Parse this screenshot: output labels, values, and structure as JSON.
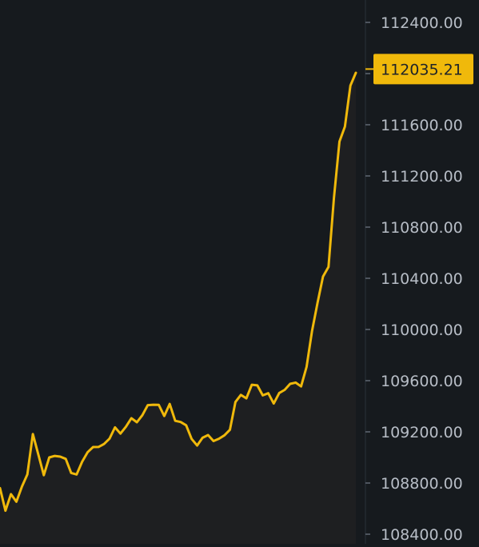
{
  "chart_data": {
    "type": "area",
    "title": "",
    "xlabel": "",
    "ylabel": "",
    "grid": false,
    "ylim": [
      108325,
      112575
    ],
    "y_ticks": [
      112400,
      112000,
      111600,
      111200,
      110800,
      110400,
      110000,
      109600,
      109200,
      108800,
      108400
    ],
    "y_tick_labels": [
      "112400.00",
      "112000.00",
      "111600.00",
      "111200.00",
      "110800.00",
      "110400.00",
      "110000.00",
      "109600.00",
      "109200.00",
      "108800.00",
      "108400.00"
    ],
    "current_price": 112035.21,
    "current_price_label": "112035.21",
    "series": [
      {
        "values": [
          108760,
          108584,
          108713,
          108654,
          108772,
          108867,
          109183,
          109023,
          108861,
          109000,
          109012,
          109006,
          108989,
          108879,
          108867,
          108966,
          109040,
          109081,
          109082,
          109105,
          109146,
          109235,
          109186,
          109240,
          109307,
          109275,
          109330,
          109409,
          109412,
          109411,
          109324,
          109418,
          109286,
          109277,
          109251,
          109145,
          109093,
          109154,
          109175,
          109128,
          109146,
          109173,
          109216,
          109433,
          109489,
          109462,
          109568,
          109563,
          109485,
          109502,
          109421,
          109504,
          109528,
          109575,
          109585,
          109555,
          109709,
          109988,
          110209,
          110413,
          110489,
          111028,
          111469,
          111585,
          111906,
          112006
        ]
      }
    ],
    "colors": {
      "background": "#161a1e",
      "line": "#f0b90b",
      "area": "#1e1f21",
      "axis_text": "#b7bdc6",
      "price_tag_bg": "#f0b90b",
      "price_tag_text": "#1e2329",
      "axis_border": "#2b3139"
    }
  }
}
